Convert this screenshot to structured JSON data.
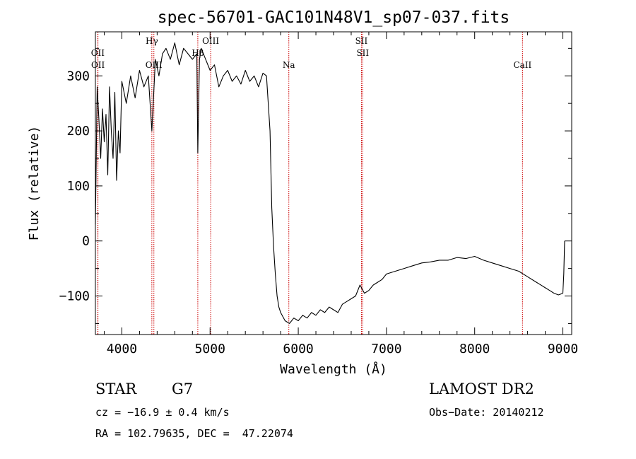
{
  "chart_data": {
    "type": "line",
    "title": "spec-56701-GAC101N48V1_sp07-037.fits",
    "xlabel": "Wavelength (Å)",
    "ylabel": "Flux (relative)",
    "xlim": [
      3700,
      9100
    ],
    "ylim": [
      -170,
      380
    ],
    "xticks": [
      4000,
      5000,
      6000,
      7000,
      8000,
      9000
    ],
    "yticks": [
      -100,
      0,
      100,
      200,
      300
    ],
    "xtick_labels": [
      "4000",
      "5000",
      "6000",
      "7000",
      "8000",
      "9000"
    ],
    "ytick_labels": [
      "−100",
      "0",
      "100",
      "200",
      "300"
    ],
    "series": [
      {
        "x": [
          3700,
          3720,
          3740,
          3760,
          3780,
          3800,
          3820,
          3840,
          3860,
          3880,
          3900,
          3920,
          3940,
          3960,
          3980,
          4000,
          4050,
          4100,
          4150,
          4200,
          4250,
          4300,
          4340,
          4380,
          4420,
          4460,
          4500,
          4550,
          4600,
          4650,
          4700,
          4750,
          4800,
          4850,
          4861,
          4880,
          4900,
          4950,
          5000,
          5050,
          5100,
          5150,
          5200,
          5250,
          5300,
          5350,
          5400,
          5450,
          5500,
          5550,
          5600,
          5640,
          5660,
          5680,
          5700,
          5720,
          5740,
          5760,
          5780,
          5800,
          5850,
          5900,
          5950,
          6000,
          6050,
          6100,
          6150,
          6200,
          6250,
          6300,
          6350,
          6400,
          6450,
          6500,
          6550,
          6600,
          6650,
          6700,
          6750,
          6800,
          6850,
          6900,
          6950,
          7000,
          7100,
          7200,
          7300,
          7400,
          7500,
          7600,
          7700,
          7800,
          7900,
          8000,
          8100,
          8200,
          8300,
          8400,
          8500,
          8600,
          8700,
          8800,
          8850,
          8900,
          8950,
          9000,
          9010,
          9020
        ],
        "y": [
          30,
          280,
          220,
          150,
          240,
          180,
          230,
          120,
          280,
          200,
          150,
          270,
          110,
          200,
          160,
          290,
          250,
          300,
          260,
          310,
          280,
          300,
          200,
          330,
          300,
          340,
          350,
          330,
          360,
          320,
          350,
          340,
          330,
          340,
          160,
          330,
          350,
          330,
          310,
          320,
          280,
          300,
          310,
          290,
          300,
          285,
          310,
          290,
          300,
          280,
          305,
          300,
          250,
          200,
          60,
          -10,
          -60,
          -100,
          -120,
          -130,
          -145,
          -150,
          -140,
          -145,
          -135,
          -140,
          -130,
          -135,
          -125,
          -130,
          -120,
          -125,
          -130,
          -115,
          -110,
          -105,
          -100,
          -80,
          -95,
          -90,
          -80,
          -75,
          -70,
          -60,
          -55,
          -50,
          -45,
          -40,
          -38,
          -35,
          -35,
          -30,
          -32,
          -28,
          -35,
          -40,
          -45,
          -50,
          -55,
          -65,
          -75,
          -85,
          -90,
          -95,
          -98,
          -95,
          -60,
          0
        ]
      }
    ],
    "lines": [
      {
        "label": "OII",
        "x": 3727,
        "label_row": 1
      },
      {
        "label": "OII",
        "x": 3729,
        "label_row": 2
      },
      {
        "label": "Hγ",
        "x": 4340,
        "label_row": 0
      },
      {
        "label": "OIII",
        "x": 4363,
        "label_row": 2
      },
      {
        "label": "Hβ",
        "x": 4861,
        "label_row": 1
      },
      {
        "label": "OIII",
        "x": 5007,
        "label_row": 0
      },
      {
        "label": "Na",
        "x": 5893,
        "label_row": 2
      },
      {
        "label": "SII",
        "x": 6716,
        "label_row": 0
      },
      {
        "label": "SII",
        "x": 6731,
        "label_row": 1
      },
      {
        "label": "CaII",
        "x": 8542,
        "label_row": 2
      }
    ],
    "line_color": "#000000",
    "marker_color": "#cc0000",
    "grid": false,
    "legend": false
  },
  "info": {
    "object_class": "STAR",
    "subclass": "G7",
    "survey": "LAMOST DR2",
    "cz": "cz = −16.9 ± 0.4 km/s",
    "obs_date": "Obs−Date: 20140212",
    "coords": "RA = 102.79635, DEC =  47.22074"
  }
}
